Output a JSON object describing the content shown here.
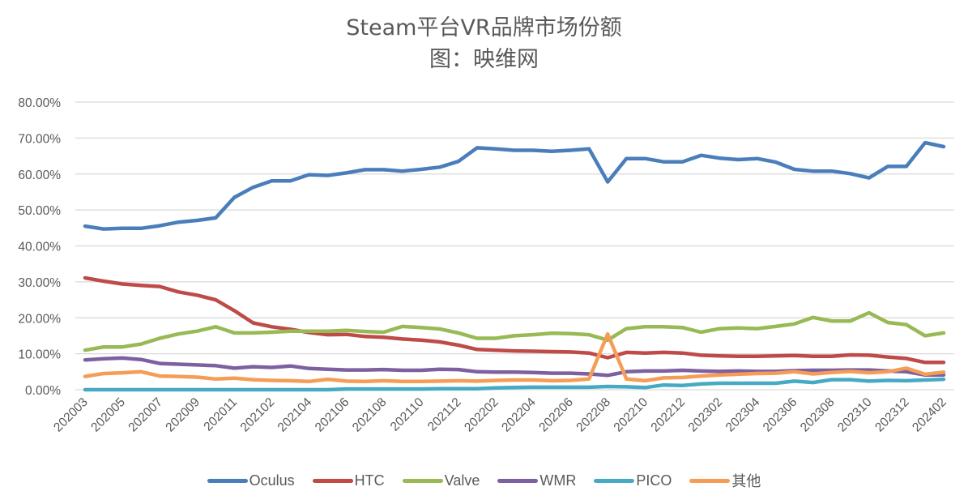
{
  "chart_data": {
    "type": "line",
    "title": "Steam平台VR品牌市场份额",
    "subtitle": "图：映维网",
    "xlabel": "",
    "ylabel": "",
    "ylim": [
      0,
      0.8
    ],
    "yticks": [
      "0.00%",
      "10.00%",
      "20.00%",
      "30.00%",
      "40.00%",
      "50.00%",
      "60.00%",
      "70.00%",
      "80.00%"
    ],
    "grid": true,
    "legend_position": "bottom",
    "x": [
      "202003",
      "202004",
      "202005",
      "202006",
      "202007",
      "202008",
      "202009",
      "202010",
      "202011",
      "202012",
      "202102",
      "202103",
      "202104",
      "202105",
      "202106",
      "202107",
      "202108",
      "202109",
      "202110",
      "202111",
      "202112",
      "202201",
      "202202",
      "202203",
      "202204",
      "202205",
      "202206",
      "202207",
      "202208",
      "202209",
      "202210",
      "202211",
      "202212",
      "202301",
      "202302",
      "202303",
      "202304",
      "202305",
      "202306",
      "202307",
      "202308",
      "202309",
      "202310",
      "202311",
      "202312",
      "202401",
      "202402"
    ],
    "xtick_labels": [
      "202003",
      "202005",
      "202007",
      "202009",
      "202011",
      "202102",
      "202104",
      "202106",
      "202108",
      "202110",
      "202112",
      "202202",
      "202204",
      "202206",
      "202208",
      "202210",
      "202212",
      "202302",
      "202304",
      "202306",
      "202308",
      "202310",
      "202312",
      "202402"
    ],
    "series": [
      {
        "name": "Oculus",
        "color": "#4a7ebb",
        "values": [
          0.455,
          0.447,
          0.449,
          0.449,
          0.456,
          0.466,
          0.471,
          0.478,
          0.535,
          0.563,
          0.581,
          0.581,
          0.598,
          0.596,
          0.603,
          0.612,
          0.612,
          0.608,
          0.613,
          0.619,
          0.635,
          0.673,
          0.67,
          0.666,
          0.666,
          0.663,
          0.666,
          0.67,
          0.578,
          0.643,
          0.643,
          0.634,
          0.634,
          0.652,
          0.644,
          0.64,
          0.643,
          0.633,
          0.613,
          0.608,
          0.608,
          0.601,
          0.589,
          0.621,
          0.621,
          0.687,
          0.676
        ]
      },
      {
        "name": "HTC",
        "color": "#be4b48",
        "values": [
          0.311,
          0.302,
          0.294,
          0.29,
          0.287,
          0.272,
          0.263,
          0.25,
          0.22,
          0.186,
          0.175,
          0.168,
          0.159,
          0.153,
          0.154,
          0.148,
          0.146,
          0.141,
          0.138,
          0.133,
          0.124,
          0.112,
          0.11,
          0.108,
          0.107,
          0.106,
          0.105,
          0.102,
          0.089,
          0.104,
          0.102,
          0.104,
          0.102,
          0.096,
          0.094,
          0.093,
          0.093,
          0.094,
          0.095,
          0.093,
          0.093,
          0.097,
          0.096,
          0.091,
          0.087,
          0.076,
          0.076
        ]
      },
      {
        "name": "Valve",
        "color": "#98b954",
        "values": [
          0.11,
          0.119,
          0.119,
          0.127,
          0.143,
          0.155,
          0.163,
          0.175,
          0.158,
          0.158,
          0.16,
          0.163,
          0.163,
          0.163,
          0.165,
          0.162,
          0.16,
          0.176,
          0.173,
          0.169,
          0.158,
          0.143,
          0.143,
          0.15,
          0.153,
          0.157,
          0.156,
          0.153,
          0.138,
          0.17,
          0.175,
          0.175,
          0.173,
          0.16,
          0.17,
          0.172,
          0.17,
          0.176,
          0.183,
          0.201,
          0.191,
          0.191,
          0.214,
          0.187,
          0.181,
          0.15,
          0.158
        ]
      },
      {
        "name": "WMR",
        "color": "#7d60a0",
        "values": [
          0.083,
          0.086,
          0.088,
          0.084,
          0.073,
          0.071,
          0.069,
          0.067,
          0.06,
          0.064,
          0.062,
          0.066,
          0.059,
          0.057,
          0.055,
          0.055,
          0.056,
          0.054,
          0.054,
          0.057,
          0.056,
          0.05,
          0.049,
          0.049,
          0.048,
          0.046,
          0.046,
          0.044,
          0.04,
          0.05,
          0.052,
          0.052,
          0.054,
          0.052,
          0.051,
          0.052,
          0.051,
          0.051,
          0.053,
          0.054,
          0.054,
          0.055,
          0.055,
          0.052,
          0.05,
          0.041,
          0.041
        ]
      },
      {
        "name": "PICO",
        "color": "#46aac5",
        "values": [
          0.0,
          0.0,
          0.0,
          0.0,
          0.0,
          0.0,
          0.0,
          0.0,
          0.0,
          0.0,
          0.0,
          0.0,
          0.0,
          0.0,
          0.002,
          0.002,
          0.002,
          0.002,
          0.002,
          0.003,
          0.003,
          0.003,
          0.005,
          0.006,
          0.007,
          0.007,
          0.007,
          0.007,
          0.009,
          0.008,
          0.006,
          0.013,
          0.012,
          0.016,
          0.018,
          0.018,
          0.018,
          0.018,
          0.024,
          0.02,
          0.028,
          0.028,
          0.024,
          0.026,
          0.025,
          0.027,
          0.029
        ]
      },
      {
        "name": "其他",
        "color": "#f59d56",
        "values": [
          0.037,
          0.045,
          0.047,
          0.05,
          0.038,
          0.037,
          0.035,
          0.03,
          0.032,
          0.028,
          0.026,
          0.025,
          0.023,
          0.029,
          0.024,
          0.023,
          0.025,
          0.023,
          0.023,
          0.024,
          0.025,
          0.024,
          0.026,
          0.027,
          0.027,
          0.025,
          0.026,
          0.03,
          0.155,
          0.03,
          0.025,
          0.033,
          0.034,
          0.038,
          0.041,
          0.043,
          0.045,
          0.046,
          0.05,
          0.044,
          0.048,
          0.051,
          0.047,
          0.05,
          0.06,
          0.043,
          0.049
        ]
      }
    ]
  }
}
